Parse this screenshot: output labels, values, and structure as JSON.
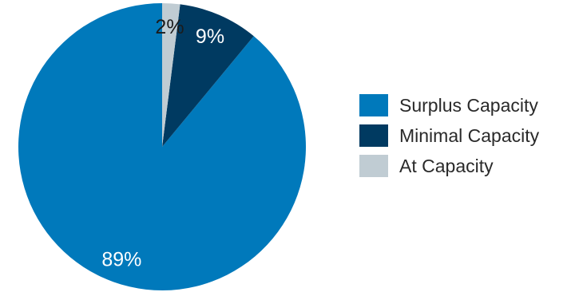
{
  "chart_data": {
    "type": "pie",
    "title": "",
    "categories": [
      "Surplus Capacity",
      "Minimal Capacity",
      "At Capacity"
    ],
    "values": [
      89,
      9,
      2
    ],
    "labels": [
      "89%",
      "9%",
      "2%"
    ],
    "colors": [
      "#0079bb",
      "#003a61",
      "#c0ccd3"
    ],
    "label_colors": [
      "#ffffff",
      "#ffffff",
      "#1b1b1b"
    ],
    "start_angle_deg": 0,
    "direction": "counterclockwise",
    "legend_position": "right"
  }
}
